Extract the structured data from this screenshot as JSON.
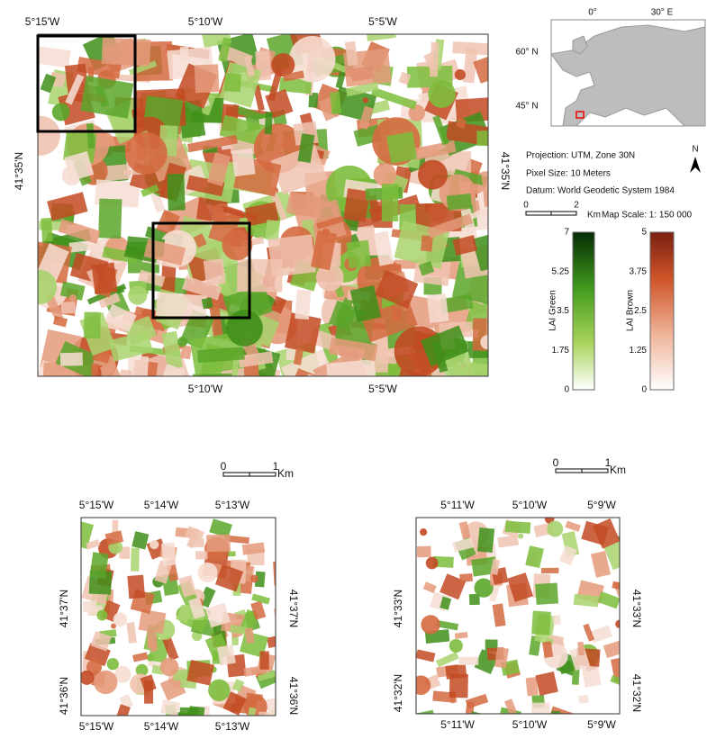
{
  "main_map": {
    "top_labels": [
      "5°15'W",
      "5°10'W",
      "5°5'W"
    ],
    "bottom_labels": [
      "5°10'W",
      "5°5'W"
    ],
    "left_label": "41°35'N",
    "right_label": "41°35'N"
  },
  "inset_map": {
    "lon_labels": [
      "0°",
      "30° E"
    ],
    "lat_labels": [
      "60° N",
      "45° N"
    ]
  },
  "info": {
    "projection": "Projection: UTM, Zone 30N",
    "pixel_size": "Pixel Size: 10 Meters",
    "datum": "Datum: World Geodetic System 1984",
    "north": "N",
    "scale_bar": [
      "0",
      "2",
      "Km"
    ],
    "map_scale": "Map Scale: 1: 150 000"
  },
  "colorbars": [
    {
      "title": "LAI Green",
      "ticks": [
        "7",
        "5.25",
        "3.5",
        "1.75",
        "0"
      ]
    },
    {
      "title": "LAI Brown",
      "ticks": [
        "5",
        "3.75",
        "2.5",
        "1.25",
        "0"
      ]
    }
  ],
  "detail_maps": [
    {
      "scale_bar": [
        "0",
        "1",
        "Km"
      ],
      "top_labels": [
        "5°15'W",
        "5°14'W",
        "5°13'W"
      ],
      "bottom_labels": [
        "5°15'W",
        "5°14'W",
        "5°13'W"
      ],
      "left_labels": [
        "41°37'N",
        "41°36'N"
      ],
      "right_labels": [
        "41°37'N",
        "41°36'N"
      ]
    },
    {
      "scale_bar": [
        "0",
        "1",
        "Km"
      ],
      "top_labels": [
        "5°11'W",
        "5°10'W",
        "5°9'W"
      ],
      "bottom_labels": [
        "5°11'W",
        "5°10'W",
        "5°9'W"
      ],
      "left_labels": [
        "41°33'N",
        "41°32'N"
      ],
      "right_labels": [
        "41°33'N",
        "41°32'N"
      ]
    }
  ]
}
